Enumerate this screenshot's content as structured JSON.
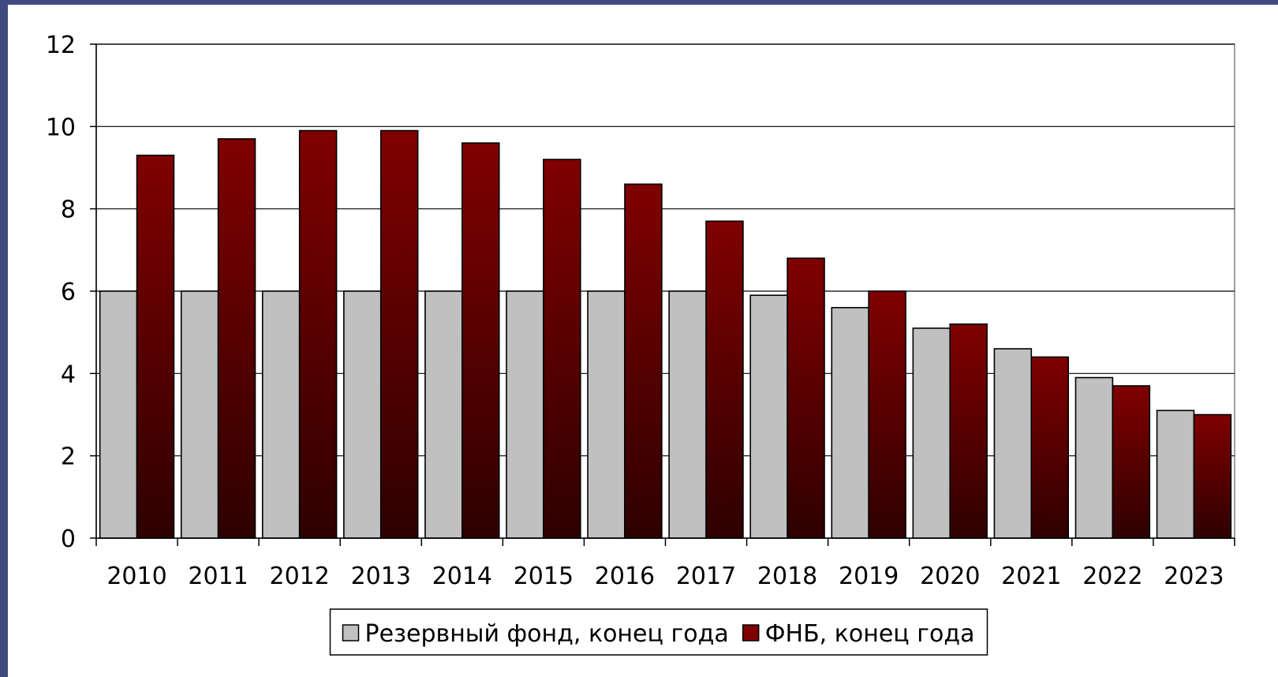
{
  "chart_data": {
    "type": "bar",
    "categories": [
      "2010",
      "2011",
      "2012",
      "2013",
      "2014",
      "2015",
      "2016",
      "2017",
      "2018",
      "2019",
      "2020",
      "2021",
      "2022",
      "2023"
    ],
    "series": [
      {
        "name": "Резервный фонд, конец года",
        "color": "#c0c0c0",
        "values": [
          6.0,
          6.0,
          6.0,
          6.0,
          6.0,
          6.0,
          6.0,
          6.0,
          5.9,
          5.6,
          5.1,
          4.6,
          3.9,
          3.1
        ]
      },
      {
        "name": "ФНБ, конец года",
        "color": "#800000",
        "values": [
          9.3,
          9.7,
          9.9,
          9.9,
          9.6,
          9.2,
          8.6,
          7.7,
          6.8,
          6.0,
          5.2,
          4.4,
          3.7,
          3.0
        ]
      }
    ],
    "ylim": [
      0,
      12
    ],
    "yticks": [
      "0",
      "2",
      "4",
      "6",
      "8",
      "10",
      "12"
    ],
    "grid": true,
    "legend": "bottom"
  }
}
